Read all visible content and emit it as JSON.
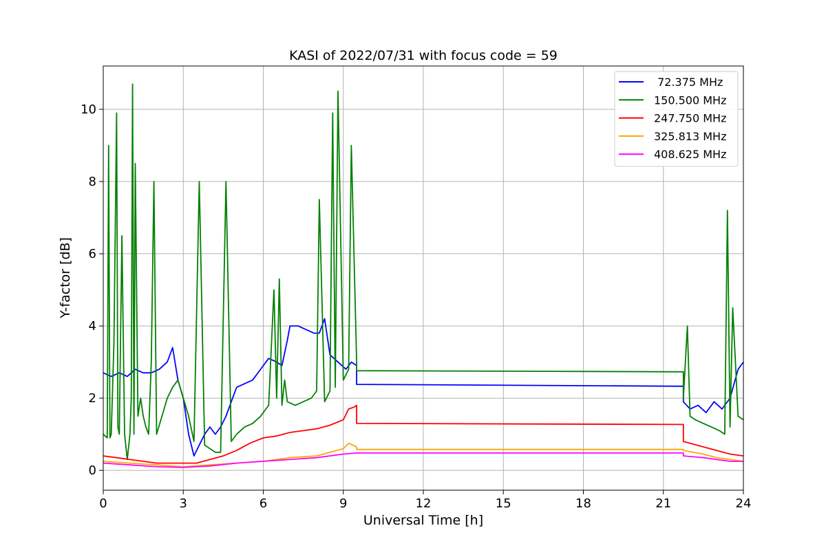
{
  "chart_data": {
    "type": "line",
    "title": "KASI of 2022/07/31 with focus code = 59",
    "xlabel": "Universal Time [h]",
    "ylabel": "Y-factor [dB]",
    "xlim": [
      0,
      24
    ],
    "ylim": [
      -0.55,
      11.2
    ],
    "xticks": [
      0,
      3,
      6,
      9,
      12,
      15,
      18,
      21,
      24
    ],
    "xtick_labels": [
      "0",
      "3",
      "6",
      "9",
      "12",
      "15",
      "18",
      "21",
      "24"
    ],
    "yticks": [
      0,
      2,
      4,
      6,
      8,
      10
    ],
    "ytick_labels": [
      "0",
      "2",
      "4",
      "6",
      "8",
      "10"
    ],
    "grid": true,
    "legend_position": "top-right",
    "series": [
      {
        "name": " 72.375 MHz",
        "color": "#0000ff",
        "x": [
          0,
          0.3,
          0.6,
          0.9,
          1.2,
          1.5,
          1.8,
          2.1,
          2.4,
          2.6,
          2.8,
          3.0,
          3.2,
          3.4,
          3.6,
          3.8,
          4.0,
          4.2,
          4.4,
          4.6,
          4.8,
          5.0,
          5.3,
          5.6,
          5.9,
          6.2,
          6.5,
          6.7,
          6.9,
          7.0,
          7.3,
          7.6,
          7.9,
          8.1,
          8.3,
          8.5,
          8.8,
          9.1,
          9.3,
          9.5,
          9.5,
          21.75,
          21.75,
          22.0,
          22.3,
          22.6,
          22.9,
          23.2,
          23.5,
          23.8,
          24.0
        ],
        "y": [
          2.7,
          2.6,
          2.7,
          2.6,
          2.8,
          2.7,
          2.7,
          2.8,
          3.0,
          3.4,
          2.5,
          2.0,
          1.0,
          0.4,
          0.7,
          1.0,
          1.2,
          1.0,
          1.2,
          1.5,
          1.9,
          2.3,
          2.4,
          2.5,
          2.8,
          3.1,
          3.0,
          2.9,
          3.6,
          4.0,
          4.0,
          3.9,
          3.8,
          3.8,
          4.2,
          3.2,
          3.0,
          2.8,
          3.0,
          2.9,
          2.38,
          2.33,
          1.9,
          1.7,
          1.8,
          1.6,
          1.9,
          1.7,
          2.0,
          2.8,
          3.0
        ]
      },
      {
        "name": "150.500 MHz",
        "color": "#008000",
        "x": [
          0,
          0.15,
          0.2,
          0.25,
          0.3,
          0.4,
          0.5,
          0.55,
          0.6,
          0.7,
          0.8,
          0.9,
          1.0,
          1.05,
          1.1,
          1.15,
          1.2,
          1.3,
          1.4,
          1.5,
          1.6,
          1.7,
          1.8,
          1.9,
          2.0,
          2.2,
          2.4,
          2.6,
          2.8,
          3.0,
          3.2,
          3.4,
          3.6,
          3.8,
          4.0,
          4.2,
          4.4,
          4.6,
          4.8,
          5.0,
          5.3,
          5.6,
          5.9,
          6.2,
          6.4,
          6.5,
          6.6,
          6.7,
          6.8,
          6.9,
          7.2,
          7.5,
          7.8,
          8.0,
          8.1,
          8.3,
          8.5,
          8.6,
          8.7,
          8.8,
          9.0,
          9.2,
          9.3,
          9.5,
          9.5,
          21.75,
          21.75,
          21.9,
          22.0,
          22.2,
          22.5,
          22.8,
          23.1,
          23.3,
          23.4,
          23.5,
          23.6,
          23.8,
          24.0
        ],
        "y": [
          1.0,
          0.9,
          9.0,
          0.9,
          1.0,
          3.5,
          9.9,
          1.2,
          1.0,
          6.5,
          1.0,
          0.3,
          1.0,
          2.0,
          10.7,
          1.0,
          8.5,
          1.5,
          2.0,
          1.5,
          1.2,
          1.0,
          3.0,
          8.0,
          1.0,
          1.5,
          2.0,
          2.3,
          2.5,
          2.0,
          1.5,
          0.8,
          8.0,
          0.7,
          0.6,
          0.5,
          0.5,
          8.0,
          0.8,
          1.0,
          1.2,
          1.3,
          1.5,
          1.8,
          5.0,
          2.0,
          5.3,
          1.8,
          2.5,
          1.9,
          1.8,
          1.9,
          2.0,
          2.2,
          7.5,
          1.9,
          2.2,
          9.9,
          2.3,
          10.5,
          2.5,
          2.8,
          9.0,
          3.0,
          2.76,
          2.73,
          2.0,
          4.0,
          1.5,
          1.4,
          1.3,
          1.2,
          1.1,
          1.0,
          7.2,
          1.2,
          4.5,
          1.5,
          1.4
        ]
      },
      {
        "name": "247.750 MHz",
        "color": "#ff0000",
        "x": [
          0,
          0.5,
          1.0,
          1.5,
          2.0,
          2.5,
          3.0,
          3.5,
          4.0,
          4.5,
          5.0,
          5.5,
          6.0,
          6.5,
          7.0,
          7.5,
          8.0,
          8.5,
          9.0,
          9.2,
          9.4,
          9.5,
          9.5,
          21.75,
          21.75,
          22.0,
          22.5,
          23.0,
          23.5,
          24.0
        ],
        "y": [
          0.4,
          0.35,
          0.3,
          0.25,
          0.2,
          0.2,
          0.2,
          0.2,
          0.3,
          0.4,
          0.55,
          0.75,
          0.9,
          0.95,
          1.05,
          1.1,
          1.15,
          1.25,
          1.4,
          1.7,
          1.75,
          1.8,
          1.3,
          1.27,
          0.8,
          0.75,
          0.65,
          0.55,
          0.45,
          0.4
        ]
      },
      {
        "name": "325.813 MHz",
        "color": "#ffa500",
        "x": [
          0,
          1.0,
          2.0,
          3.0,
          4.0,
          5.0,
          6.0,
          7.0,
          8.0,
          8.5,
          9.0,
          9.2,
          9.5,
          9.5,
          21.75,
          21.75,
          22.5,
          23.0,
          23.5,
          24.0
        ],
        "y": [
          0.25,
          0.2,
          0.15,
          0.1,
          0.15,
          0.2,
          0.25,
          0.35,
          0.4,
          0.5,
          0.6,
          0.75,
          0.65,
          0.58,
          0.58,
          0.55,
          0.45,
          0.35,
          0.3,
          0.25
        ]
      },
      {
        "name": "408.625 MHz",
        "color": "#ff00ff",
        "x": [
          0,
          1.0,
          2.0,
          3.0,
          4.0,
          5.0,
          6.0,
          7.0,
          8.0,
          9.0,
          9.5,
          9.5,
          21.75,
          21.75,
          22.5,
          23.0,
          23.5,
          24.0
        ],
        "y": [
          0.2,
          0.15,
          0.1,
          0.08,
          0.12,
          0.2,
          0.25,
          0.3,
          0.35,
          0.45,
          0.48,
          0.48,
          0.48,
          0.4,
          0.35,
          0.3,
          0.25,
          0.25
        ]
      }
    ]
  }
}
